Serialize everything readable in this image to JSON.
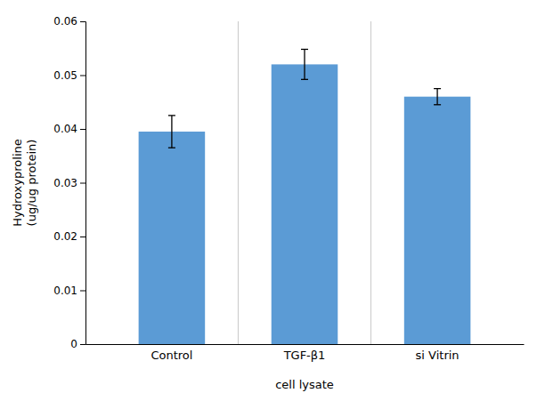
{
  "chart_data": {
    "type": "bar",
    "categories": [
      "Control",
      "TGF-β1",
      "si Vitrin"
    ],
    "values": [
      0.0395,
      0.052,
      0.046
    ],
    "errors": [
      0.003,
      0.0028,
      0.0015
    ],
    "color": "#5B9BD5",
    "xlabel": "cell lysate",
    "ylabel": "Hydroxyproline\n(ug/ug protein)",
    "ylim": [
      0,
      0.06
    ],
    "yticks": [
      0,
      0.01,
      0.02,
      0.03,
      0.04,
      0.05,
      0.06
    ],
    "grid": false
  }
}
